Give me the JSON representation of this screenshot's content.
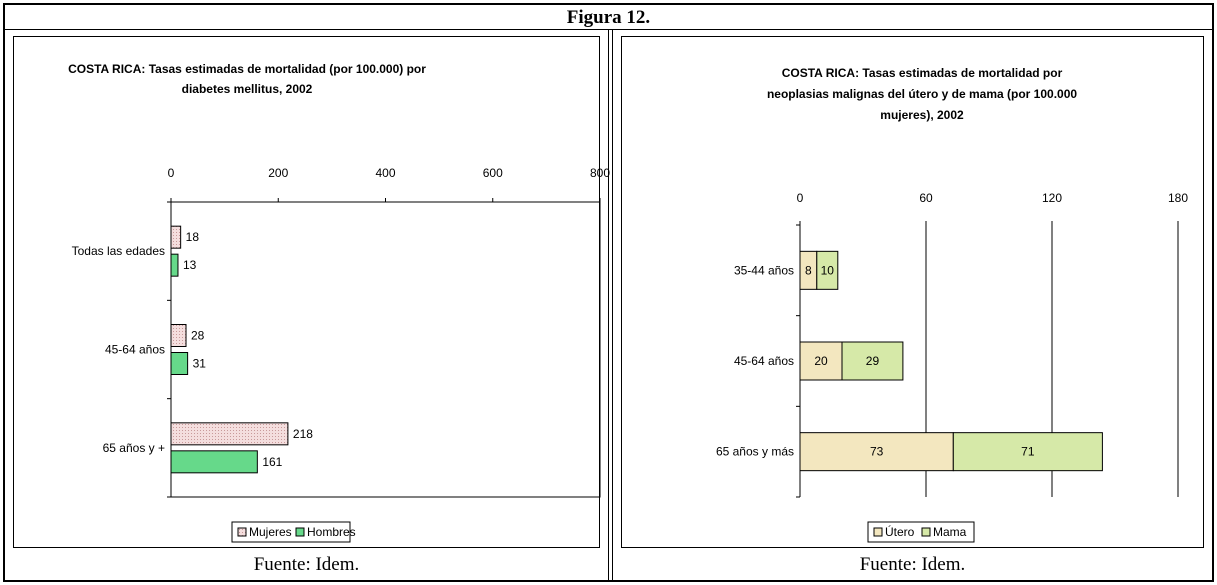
{
  "figure_title": "Figura 12.",
  "left_source": "Fuente: Idem.",
  "right_source": "Fuente: Idem.",
  "chart_data": [
    {
      "type": "bar",
      "orientation": "horizontal",
      "title_lines": [
        "COSTA RICA: Tasas estimadas de mortalidad (por 100.000) por",
        "diabetes mellitus, 2002"
      ],
      "categories": [
        "Todas las edades",
        "45-64 años",
        "65 años y +"
      ],
      "series": [
        {
          "name": "Mujeres",
          "values": [
            18,
            28,
            218
          ],
          "color": "#f4dede",
          "pattern": "dots"
        },
        {
          "name": "Hombres",
          "values": [
            13,
            31,
            161
          ],
          "color": "#66d98a",
          "pattern": "none"
        }
      ],
      "data_labels": [
        [
          "18",
          "28",
          "218"
        ],
        [
          "13",
          "31",
          "161"
        ]
      ],
      "xlim": [
        0,
        800
      ],
      "xticks": [
        "0",
        "200",
        "400",
        "600",
        "800"
      ],
      "axis_position": "top",
      "grid": false,
      "legend": "bottom"
    },
    {
      "type": "bar",
      "orientation": "horizontal",
      "stacked": true,
      "title_lines": [
        "COSTA RICA: Tasas estimadas de mortalidad por",
        "neoplasias malignas del útero y de mama (por 100.000",
        "mujeres), 2002"
      ],
      "categories": [
        "35-44 años",
        "45-64 años",
        "65 años y más"
      ],
      "series": [
        {
          "name": "Útero",
          "values": [
            8,
            20,
            73
          ],
          "color": "#f3e7bf"
        },
        {
          "name": "Mama",
          "values": [
            10,
            29,
            71
          ],
          "color": "#d6e9a8"
        }
      ],
      "data_labels": [
        [
          "8",
          "20",
          "73"
        ],
        [
          "10",
          "29",
          "71"
        ]
      ],
      "xlim": [
        0,
        180
      ],
      "xticks": [
        "0",
        "60",
        "120",
        "180"
      ],
      "axis_position": "top",
      "grid": true,
      "legend": "bottom"
    }
  ]
}
